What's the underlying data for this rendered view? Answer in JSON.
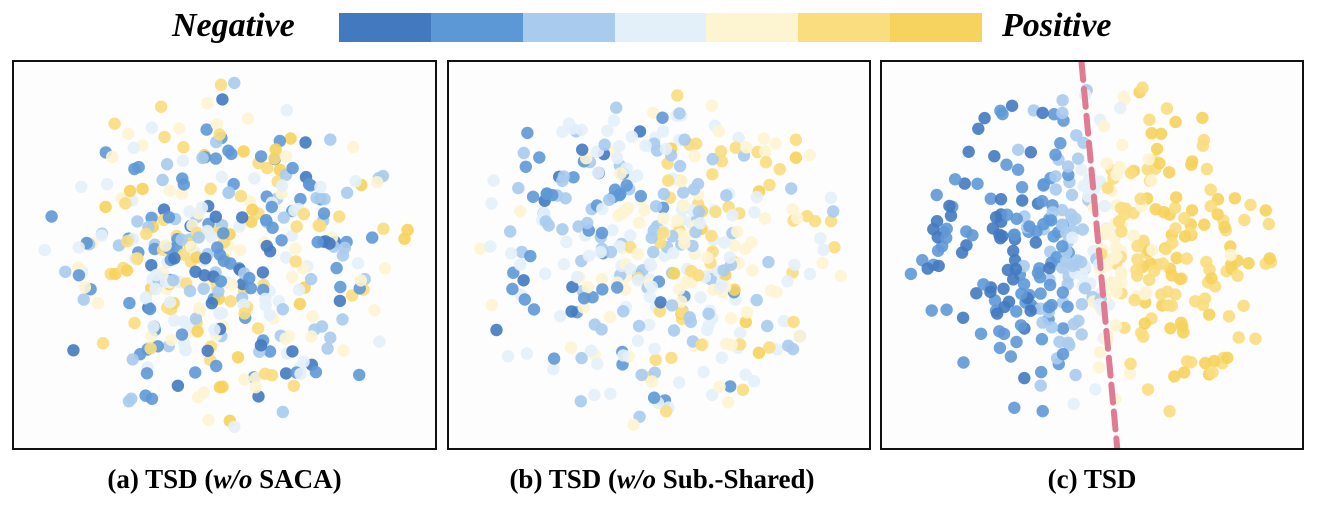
{
  "legend": {
    "negative_label": "Negative",
    "positive_label": "Positive",
    "colors": [
      "#4279bf",
      "#5d98d6",
      "#a8cbee",
      "#e3eff9",
      "#fdf4d2",
      "#f9dd7e",
      "#f6d35c"
    ]
  },
  "chart_data": [
    {
      "type": "scatter",
      "title": "(a) TSD (w/o SACA)",
      "caption_prefix": "(a) TSD (",
      "caption_italic": "w/o",
      "caption_suffix": " SACA)",
      "xlim": [
        -1,
        1
      ],
      "ylim": [
        -1,
        1
      ],
      "points": 400,
      "separation": 0.0,
      "spread": 0.9,
      "boundary": null
    },
    {
      "type": "scatter",
      "title": "(b) TSD (w/o Sub.-Shared)",
      "caption_prefix": "(b) TSD (",
      "caption_italic": "w/o",
      "caption_suffix": " Sub.-Shared)",
      "xlim": [
        -1,
        1
      ],
      "ylim": [
        -1,
        1
      ],
      "points": 400,
      "separation": 0.35,
      "spread": 0.9,
      "boundary": null
    },
    {
      "type": "scatter",
      "title": "(c) TSD",
      "caption_prefix": "(c) TSD",
      "caption_italic": "",
      "caption_suffix": "",
      "xlim": [
        -1,
        1
      ],
      "ylim": [
        -1,
        1
      ],
      "points": 420,
      "separation": 0.85,
      "spread": 0.9,
      "boundary": {
        "color": "#df7b93",
        "style": "dashed",
        "top": [
          -0.05,
          1.0
        ],
        "bottom": [
          0.12,
          -1.0
        ]
      }
    }
  ]
}
